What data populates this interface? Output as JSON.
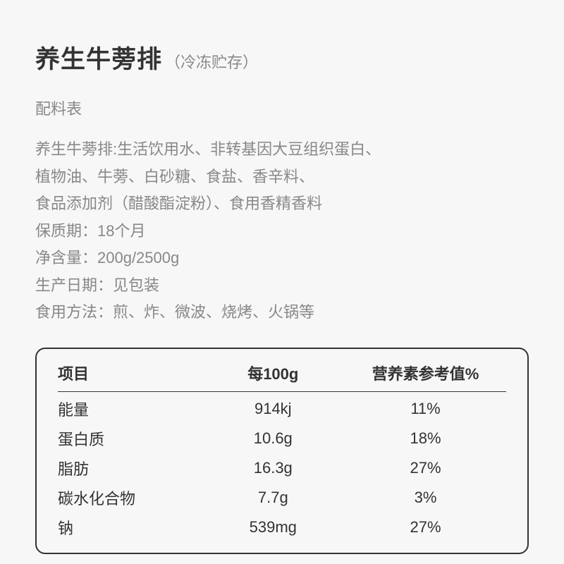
{
  "title": {
    "main": "养生牛蒡排",
    "sub": "（冷冻贮存）"
  },
  "ingredients_label": "配料表",
  "info_lines": [
    "养生牛蒡排:生活饮用水、非转基因大豆组织蛋白、",
    "植物油、牛蒡、白砂糖、食盐、香辛料、",
    "食品添加剂（醋酸酯淀粉）、食用香精香料",
    "保质期：18个月",
    "净含量：200g/2500g",
    "生产日期：见包装",
    "食用方法：煎、炸、微波、烧烤、火锅等"
  ],
  "nutrition": {
    "header": {
      "item": "项目",
      "per": "每100g",
      "nrv": "营养素参考值%"
    },
    "rows": [
      {
        "item": "能量",
        "per": "914kj",
        "nrv": "11%"
      },
      {
        "item": "蛋白质",
        "per": "10.6g",
        "nrv": "18%"
      },
      {
        "item": "脂肪",
        "per": "16.3g",
        "nrv": "27%"
      },
      {
        "item": "碳水化合物",
        "per": "7.7g",
        "nrv": "3%"
      },
      {
        "item": "钠",
        "per": "539mg",
        "nrv": "27%"
      }
    ]
  },
  "style": {
    "bg_color": "#f7f7f7",
    "title_color": "#333333",
    "body_text_color": "#888888",
    "table_text_color": "#333333",
    "border_color": "#333333",
    "title_fontsize": 35,
    "sub_fontsize": 22,
    "body_fontsize": 22,
    "border_radius": 14
  }
}
